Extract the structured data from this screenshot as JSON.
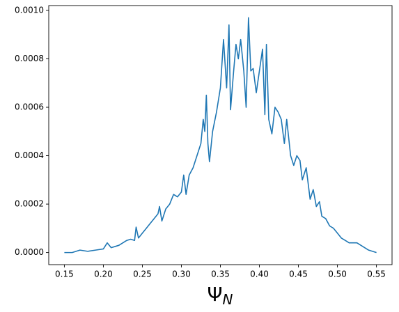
{
  "chart_data": {
    "type": "line",
    "xlabel": "Ψ",
    "xlabel_subscript": "N",
    "xlim": [
      0.13,
      0.57
    ],
    "ylim": [
      -5e-05,
      0.00102
    ],
    "xticks": [
      0.15,
      {
        "value": 0.2,
        "label": "0.20"
      },
      0.25,
      {
        "value": 0.3,
        "label": "0.30"
      },
      0.35,
      {
        "value": 0.4,
        "label": "0.40"
      },
      0.45,
      {
        "value": 0.5,
        "label": "0.50"
      },
      0.55
    ],
    "yticks": [
      {
        "value": 0,
        "label": "0.0000"
      },
      {
        "value": 0.0002,
        "label": "0.0002"
      },
      {
        "value": 0.0004,
        "label": "0.0004"
      },
      {
        "value": 0.0006,
        "label": "0.0006"
      },
      {
        "value": 0.0008,
        "label": "0.0008"
      },
      {
        "value": 0.001,
        "label": "0.0010"
      }
    ],
    "series": [
      {
        "color": "#1f77b4",
        "x": [
          0.15,
          0.16,
          0.17,
          0.18,
          0.19,
          0.2,
          0.205,
          0.21,
          0.215,
          0.22,
          0.225,
          0.23,
          0.235,
          0.24,
          0.242,
          0.245,
          0.25,
          0.255,
          0.26,
          0.265,
          0.27,
          0.272,
          0.275,
          0.28,
          0.285,
          0.29,
          0.295,
          0.3,
          0.303,
          0.306,
          0.31,
          0.315,
          0.32,
          0.325,
          0.328,
          0.33,
          0.332,
          0.334,
          0.336,
          0.34,
          0.345,
          0.35,
          0.354,
          0.358,
          0.361,
          0.363,
          0.367,
          0.37,
          0.373,
          0.376,
          0.38,
          0.383,
          0.386,
          0.389,
          0.392,
          0.396,
          0.4,
          0.404,
          0.407,
          0.409,
          0.412,
          0.416,
          0.42,
          0.424,
          0.428,
          0.432,
          0.435,
          0.44,
          0.444,
          0.448,
          0.452,
          0.455,
          0.46,
          0.465,
          0.469,
          0.473,
          0.477,
          0.48,
          0.485,
          0.49,
          0.495,
          0.5,
          0.505,
          0.51,
          0.515,
          0.52,
          0.525,
          0.53,
          0.54,
          0.55
        ],
        "values": [
          0,
          0,
          1e-05,
          5e-06,
          1e-05,
          1.5e-05,
          4e-05,
          2e-05,
          2.5e-05,
          3e-05,
          4e-05,
          5e-05,
          5.5e-05,
          5e-05,
          0.000105,
          6e-05,
          8e-05,
          0.0001,
          0.00012,
          0.00014,
          0.00016,
          0.00019,
          0.00013,
          0.00018,
          0.0002,
          0.00024,
          0.00023,
          0.00025,
          0.00032,
          0.00024,
          0.00032,
          0.00035,
          0.0004,
          0.00045,
          0.00055,
          0.0005,
          0.00065,
          0.00045,
          0.000375,
          0.0005,
          0.00058,
          0.00068,
          0.00088,
          0.00068,
          0.00094,
          0.00059,
          0.00075,
          0.00086,
          0.0008,
          0.00088,
          0.00075,
          0.0006,
          0.00097,
          0.00075,
          0.00076,
          0.00066,
          0.00075,
          0.00084,
          0.00057,
          0.00086,
          0.00055,
          0.00049,
          0.0006,
          0.00058,
          0.00055,
          0.00045,
          0.00055,
          0.0004,
          0.00036,
          0.0004,
          0.00038,
          0.0003,
          0.00035,
          0.00022,
          0.00026,
          0.00019,
          0.00021,
          0.00015,
          0.00014,
          0.00011,
          0.0001,
          8e-05,
          6e-05,
          5e-05,
          4e-05,
          4e-05,
          4e-05,
          3e-05,
          1e-05,
          0
        ]
      }
    ]
  }
}
